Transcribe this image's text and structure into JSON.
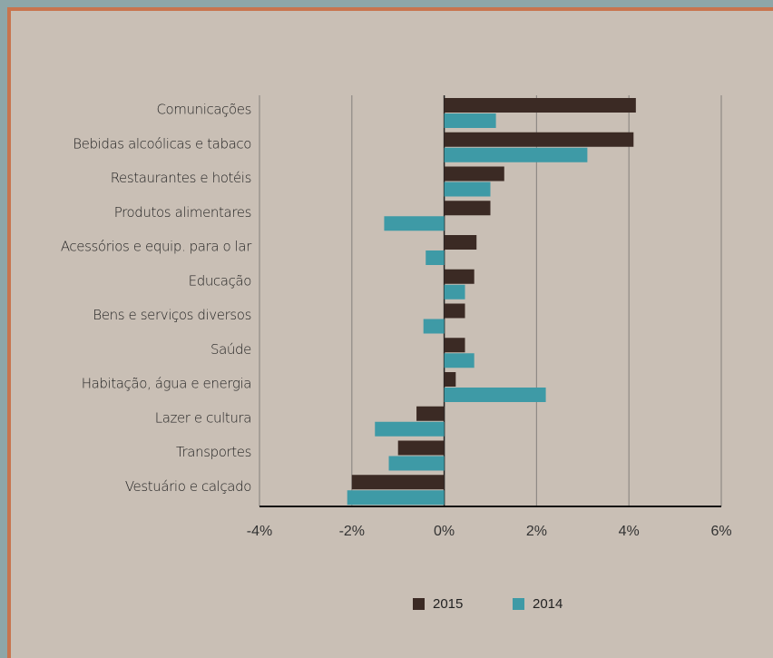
{
  "chart_data": {
    "type": "hbar",
    "categories": [
      "Comunicações",
      "Bebidas alcoólicas e tabaco",
      "Restaurantes e hotéis",
      "Produtos alimentares",
      "Acessórios e equip. para o lar",
      "Educação",
      "Bens e serviços diversos",
      "Saúde",
      "Habitação, água e energia",
      "Lazer e cultura",
      "Transportes",
      "Vestuário e calçado"
    ],
    "series": [
      {
        "name": "2015",
        "color": "#3b2a24",
        "values": [
          4.15,
          4.1,
          1.3,
          1.0,
          0.7,
          0.65,
          0.45,
          0.45,
          0.25,
          -0.6,
          -1.0,
          -2.0
        ]
      },
      {
        "name": "2014",
        "color": "#3e9aa6",
        "values": [
          1.12,
          3.1,
          1.0,
          -1.3,
          -0.4,
          0.45,
          -0.45,
          0.65,
          2.2,
          -1.5,
          -1.2,
          -2.1
        ]
      }
    ],
    "xlim": [
      -4,
      6
    ],
    "xticks": [
      {
        "value": -4,
        "label": "-4%"
      },
      {
        "value": -2,
        "label": "-2%"
      },
      {
        "value": 0,
        "label": "0%"
      },
      {
        "value": 2,
        "label": "2%"
      },
      {
        "value": 4,
        "label": "4%"
      },
      {
        "value": 6,
        "label": "6%"
      }
    ],
    "grid": true,
    "legend": "bottom"
  }
}
